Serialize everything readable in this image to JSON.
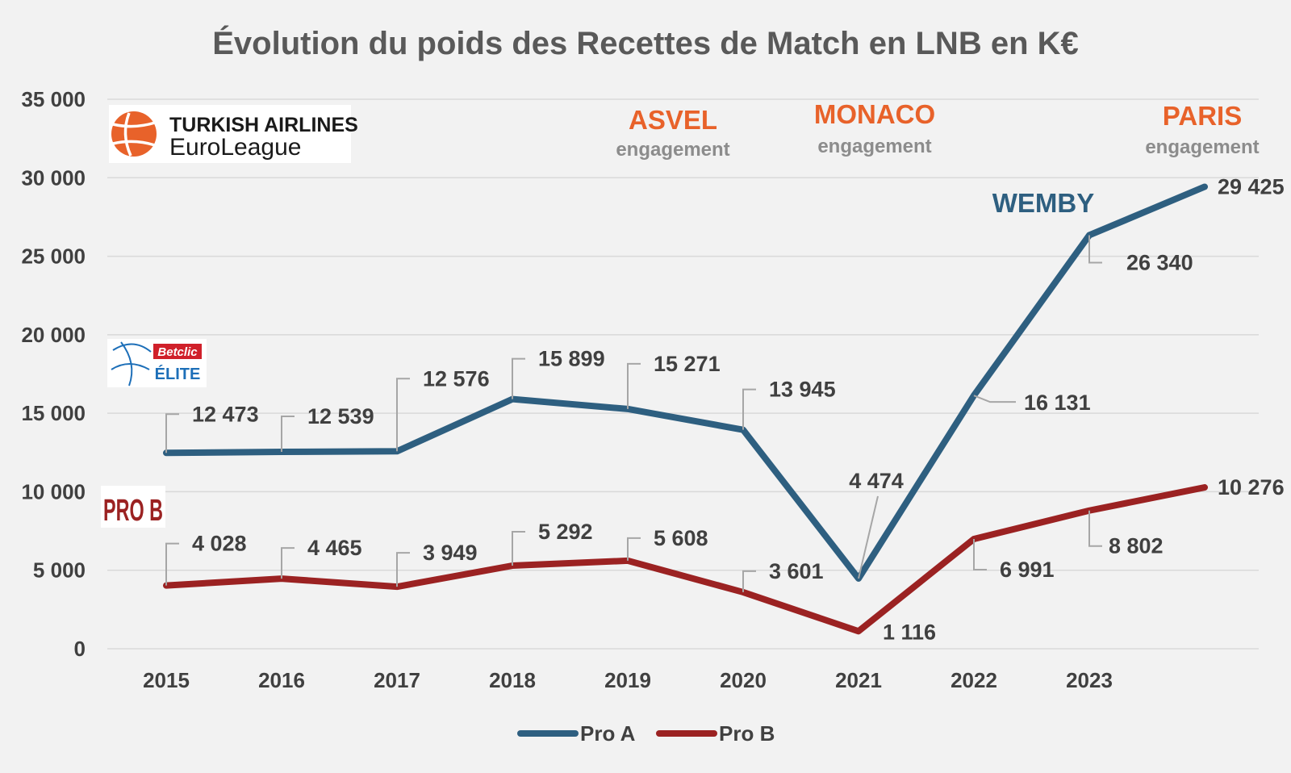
{
  "chart_data": {
    "type": "line",
    "title": "Évolution du poids des Recettes de Match en LNB en K€",
    "xlabel": "",
    "ylabel": "",
    "categories": [
      "2015",
      "2016",
      "2017",
      "2018",
      "2019",
      "2020",
      "2021",
      "2022",
      "2023",
      ""
    ],
    "x_tick_labels": [
      "2015",
      "2016",
      "2017",
      "2018",
      "2019",
      "2020",
      "2021",
      "2022",
      "2023"
    ],
    "ylim": [
      0,
      35000
    ],
    "y_tick_values": [
      0,
      5000,
      10000,
      15000,
      20000,
      25000,
      30000,
      35000
    ],
    "y_tick_labels": [
      "0",
      "5 000",
      "10 000",
      "15 000",
      "20 000",
      "25 000",
      "30 000",
      "35 000"
    ],
    "grid": true,
    "legend_position": "bottom",
    "series": [
      {
        "name": "Pro A",
        "color": "#2e5f80",
        "values": [
          12473,
          12539,
          12576,
          15899,
          15271,
          13945,
          4474,
          16131,
          26340,
          29425
        ],
        "labels": [
          "12 473",
          "12 539",
          "12 576",
          "15 899",
          "15 271",
          "13 945",
          "4 474",
          "16 131",
          "26 340",
          "29 425"
        ]
      },
      {
        "name": "Pro B",
        "color": "#9b2222",
        "values": [
          4028,
          4465,
          3949,
          5292,
          5608,
          3601,
          1116,
          6991,
          8802,
          10276
        ],
        "labels": [
          "4 028",
          "4 465",
          "3 949",
          "5 292",
          "5 608",
          "3 601",
          "1 116",
          "6 991",
          "8 802",
          "10 276"
        ]
      }
    ],
    "annotations": [
      {
        "team": "ASVEL",
        "sub": "engagement",
        "color": "#e8622a"
      },
      {
        "team": "MONACO",
        "sub": "engagement",
        "color": "#e8622a"
      },
      {
        "team": "PARIS",
        "sub": "engagement",
        "color": "#e8622a"
      },
      {
        "text": "WEMBY",
        "color": "#2e5f80"
      }
    ]
  },
  "logos": {
    "euroleague": {
      "line1": "TURKISH AIRLINES",
      "line2": "EuroLeague",
      "color": "#e8622a"
    },
    "betclic": {
      "badge": "Betclic",
      "text": "ÉLITE",
      "badge_color": "#d0202a",
      "text_color": "#1d6fb8"
    },
    "prob": {
      "text": "PRO B",
      "color": "#9b2222"
    }
  }
}
